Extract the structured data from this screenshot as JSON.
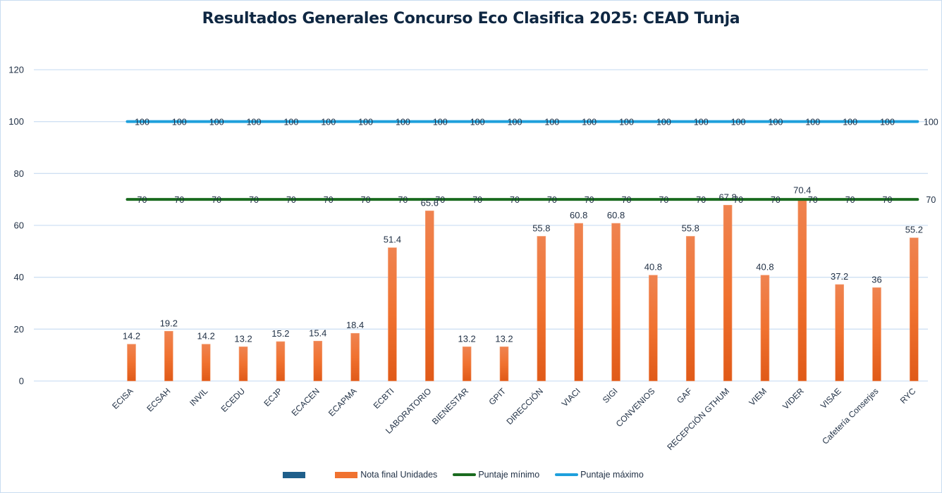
{
  "chart_data": {
    "type": "bar",
    "title": "Resultados Generales Concurso Eco Clasifica 2025: CEAD Tunja",
    "xlabel": "",
    "ylabel": "",
    "ylim": [
      0,
      120
    ],
    "yticks": [
      0,
      20,
      40,
      60,
      80,
      100,
      120
    ],
    "grid": true,
    "legend_position": "bottom",
    "categories": [
      "ECISA",
      "ECSAH",
      "INVIL",
      "ECEDU",
      "ECJP",
      "ECACEN",
      "ECAPMA",
      "ECBTI",
      "LABORATORIO",
      "BIENESTAR",
      "GPIT",
      "DIRECCIÓN",
      "VIACI",
      "SIGI",
      "CONVENIOS",
      "GAF",
      "RECEPCIÓN GTHUM",
      "VIEM",
      "VIDER",
      "VISAE",
      "Cafetería Conserjes",
      "RYC"
    ],
    "series": [
      {
        "name": "",
        "type": "bar",
        "color": "#1f5f8b",
        "values": []
      },
      {
        "name": "Nota final Unidades",
        "type": "bar",
        "color": "#f07230",
        "values": [
          14.2,
          19.2,
          14.2,
          13.2,
          15.2,
          15.4,
          18.4,
          51.4,
          65.6,
          13.2,
          13.2,
          55.8,
          60.8,
          60.8,
          40.8,
          55.8,
          67.8,
          40.8,
          70.4,
          37.2,
          36,
          55.2
        ]
      },
      {
        "name": "Puntaje mínimo",
        "type": "line",
        "color": "#1a6b1f",
        "values": [
          70,
          70,
          70,
          70,
          70,
          70,
          70,
          70,
          70,
          70,
          70,
          70,
          70,
          70,
          70,
          70,
          70,
          70,
          70,
          70,
          70,
          70
        ]
      },
      {
        "name": "Puntaje máximo",
        "type": "line",
        "color": "#1ea0dc",
        "values": [
          100,
          100,
          100,
          100,
          100,
          100,
          100,
          100,
          100,
          100,
          100,
          100,
          100,
          100,
          100,
          100,
          100,
          100,
          100,
          100,
          100,
          100
        ]
      }
    ],
    "bar_labels": [
      "14.2",
      "19.2",
      "14.2",
      "13.2",
      "15.2",
      "15.4",
      "18.4",
      "51.4",
      "65.6",
      "13.2",
      "13.2",
      "55.8",
      "60.8",
      "60.8",
      "40.8",
      "55.8",
      "67.8",
      "40.8",
      "70.4",
      "37.2",
      "36",
      "55.2"
    ]
  }
}
